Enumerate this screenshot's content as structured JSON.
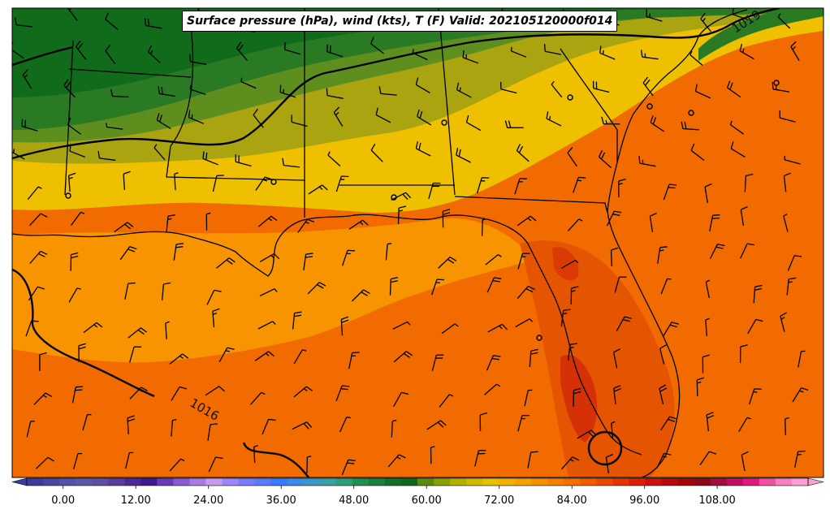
{
  "title": "Surface pressure (hPa), wind (kts), T (F) Valid: 202105120000f014",
  "colorbar": {
    "tick_labels": [
      "0.00",
      "12.00",
      "24.00",
      "36.00",
      "48.00",
      "60.00",
      "72.00",
      "84.00",
      "96.00",
      "108.00"
    ],
    "tick_values": [
      0,
      12,
      24,
      36,
      48,
      60,
      72,
      84,
      96,
      108
    ],
    "min": -6,
    "max": 123,
    "step": 3,
    "colors": [
      "#3b3b9e",
      "#4747a3",
      "#5252a8",
      "#5a5aa8",
      "#5f4fa3",
      "#5a3c9e",
      "#4e2a98",
      "#3f1a90",
      "#6a3ab8",
      "#8a5ad0",
      "#a97ae0",
      "#c79af0",
      "#9a86ff",
      "#7a7aff",
      "#5a7aff",
      "#3a7aff",
      "#3a8ae8",
      "#3a96c8",
      "#3aa0a8",
      "#2aa078",
      "#1e9050",
      "#188038",
      "#147028",
      "#106820",
      "#5a8a10",
      "#8aa000",
      "#b0b000",
      "#d0b800",
      "#e8c000",
      "#f0b000",
      "#f5a000",
      "#f59000",
      "#f57f00",
      "#f56e00",
      "#f25a00",
      "#ec4800",
      "#e53400",
      "#dc2000",
      "#cc1010",
      "#b80808",
      "#a00808",
      "#8a0a1a",
      "#a0103a",
      "#c01060",
      "#e01880",
      "#f050a0",
      "#f880c0",
      "#fba0d0"
    ]
  },
  "isobar_labels": [
    "1019",
    "1016"
  ],
  "colors": {
    "bg_warm": "#f26b00",
    "gulf_warm": "#f79400",
    "hot": "#e55400",
    "hottest": "#d42a08",
    "yellow": "#eec000",
    "olive": "#a9a410",
    "green_light": "#5e8f1e",
    "green": "#2a7a24",
    "green_dark": "#106b1a"
  }
}
